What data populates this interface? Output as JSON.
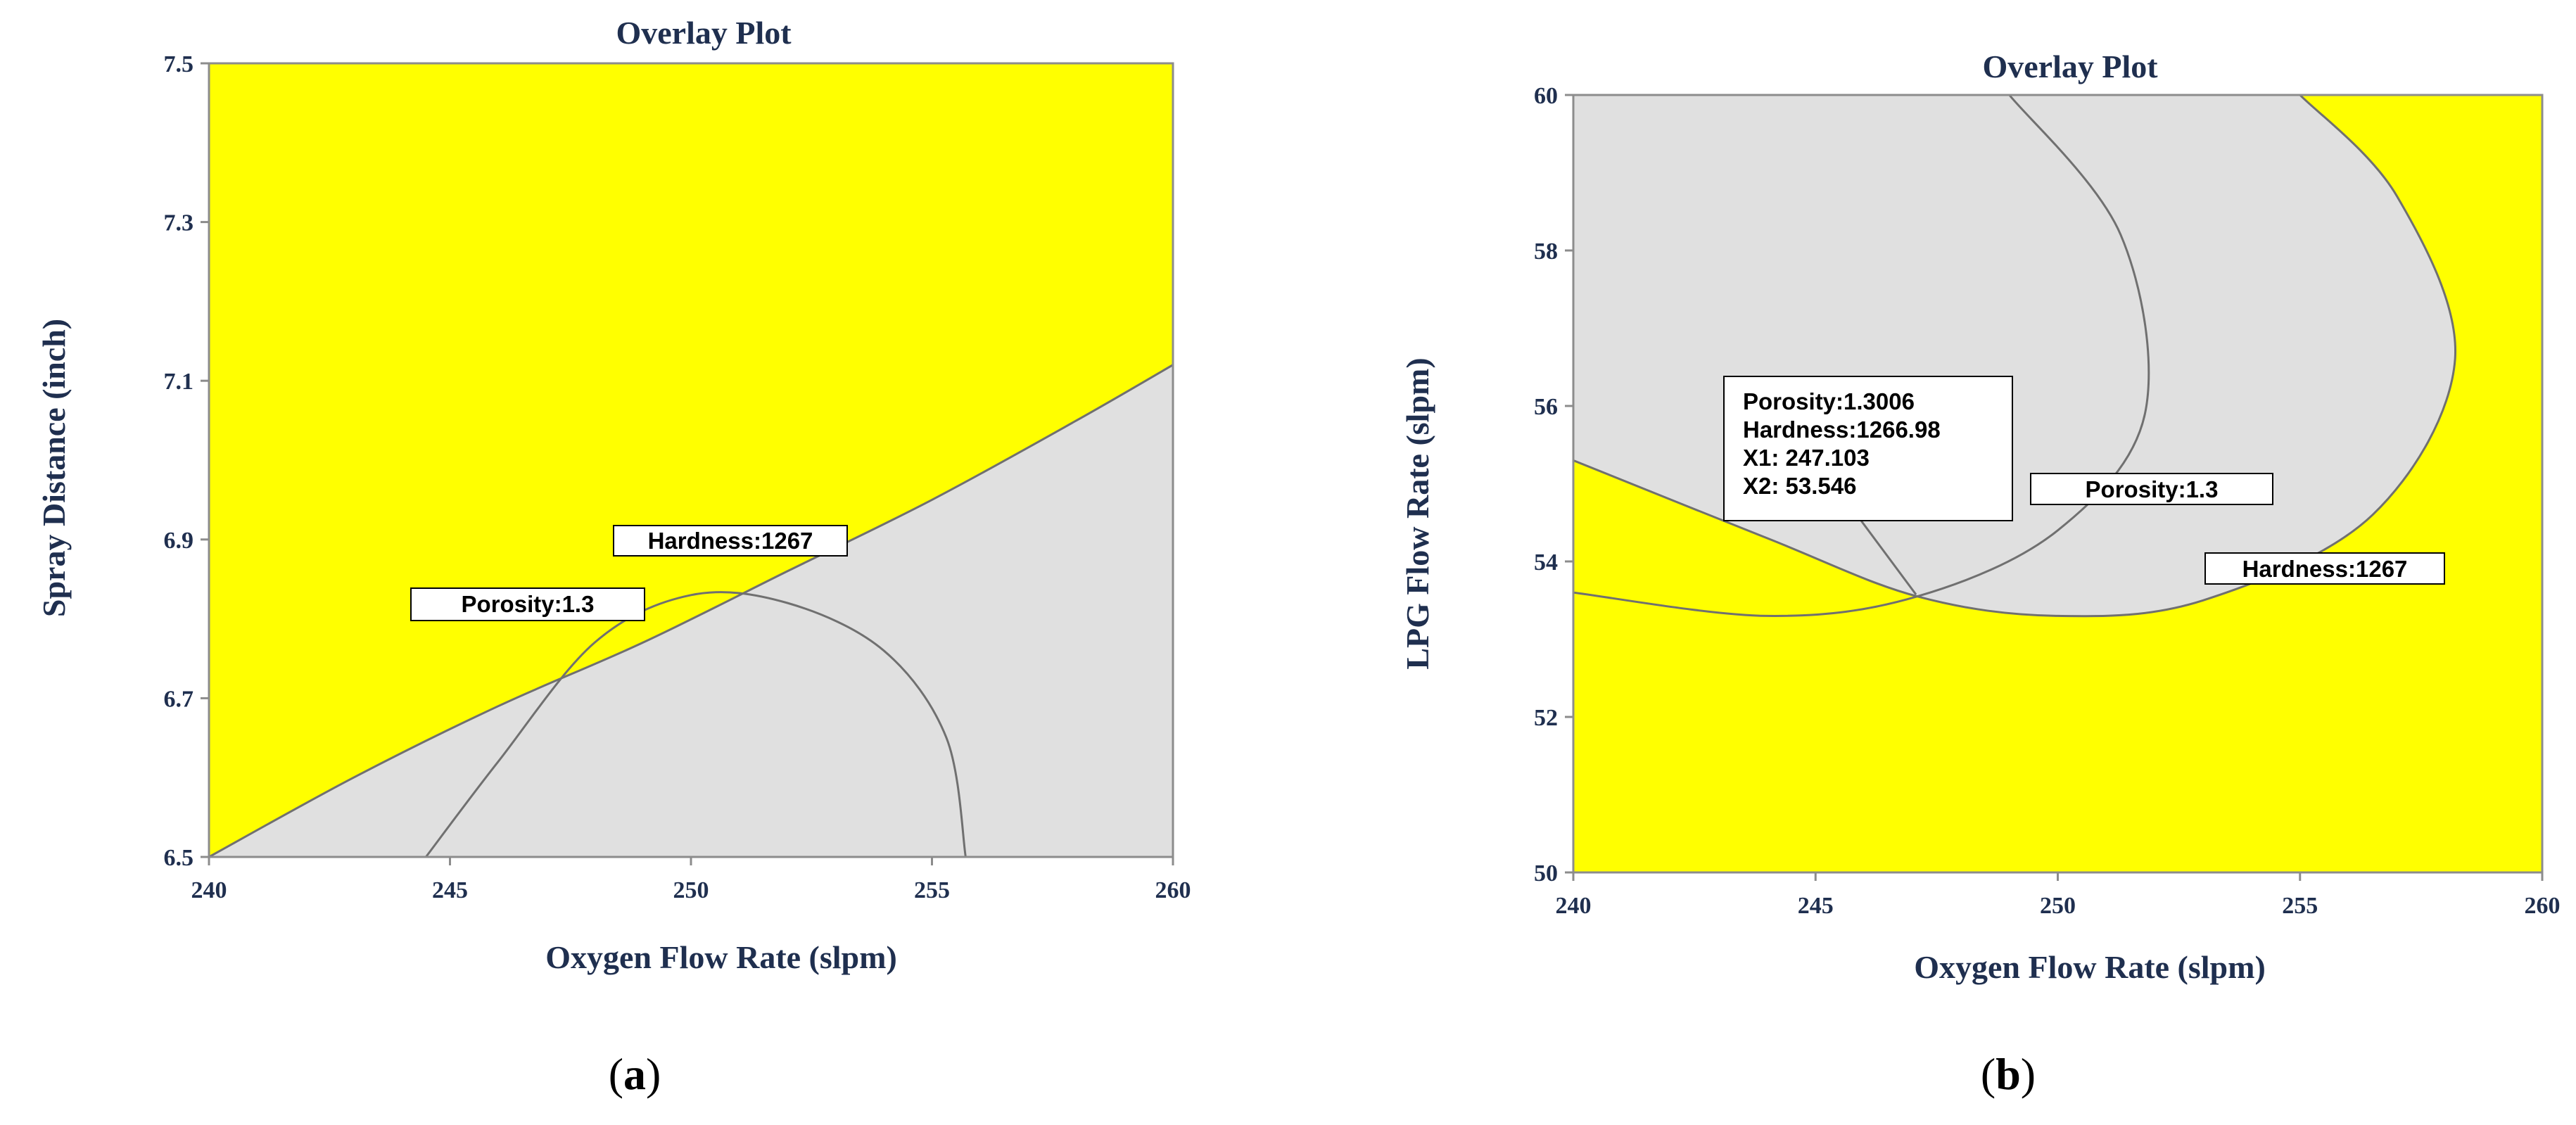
{
  "colors": {
    "feasible": "#ffff00",
    "infeasible": "#e0e0e0",
    "contour": "#707070",
    "frame": "#8c8c8c",
    "text": "#1f2f4f"
  },
  "chart_data": [
    {
      "panel": "a",
      "type": "contour",
      "title": "Overlay Plot",
      "xlabel": "Oxygen Flow Rate (slpm)",
      "ylabel": "Spray Distance (inch)",
      "xlim": [
        240,
        260
      ],
      "ylim": [
        6.5,
        7.5
      ],
      "xticks": [
        "240",
        "245",
        "250",
        "255",
        "260"
      ],
      "yticks": [
        "6.5",
        "6.7",
        "6.9",
        "7.1",
        "7.3",
        "7.5"
      ],
      "grid": false,
      "contours": [
        {
          "response": "Porosity",
          "level": 1.3,
          "label": "Porosity:1.3",
          "points": [
            [
              240,
              6.5
            ],
            [
              243,
              6.6
            ],
            [
              246,
              6.69
            ],
            [
              249,
              6.77
            ],
            [
              252,
              6.86
            ],
            [
              255,
              6.95
            ],
            [
              258,
              7.05
            ],
            [
              260,
              7.12
            ]
          ]
        },
        {
          "response": "Hardness",
          "level": 1267,
          "label": "Hardness:1267",
          "points": [
            [
              244.5,
              6.5
            ],
            [
              246,
              6.62
            ],
            [
              248,
              6.77
            ],
            [
              250,
              6.83
            ],
            [
              252,
              6.82
            ],
            [
              254,
              6.76
            ],
            [
              255.3,
              6.65
            ],
            [
              255.7,
              6.5
            ]
          ]
        }
      ]
    },
    {
      "panel": "b",
      "type": "contour",
      "title": "Overlay Plot",
      "xlabel": "Oxygen Flow Rate (slpm)",
      "ylabel": "LPG Flow Rate (slpm)",
      "xlim": [
        240,
        260
      ],
      "ylim": [
        50,
        60
      ],
      "xticks": [
        "240",
        "245",
        "250",
        "255",
        "260"
      ],
      "yticks": [
        "50",
        "52",
        "54",
        "56",
        "58",
        "60"
      ],
      "grid": false,
      "contours": [
        {
          "response": "Porosity",
          "level": 1.3,
          "label": "Porosity:1.3",
          "points": [
            [
              240,
              53.6
            ],
            [
              244,
              53.3
            ],
            [
              247.1,
              53.55
            ],
            [
              250,
              54.4
            ],
            [
              251.8,
              55.9
            ],
            [
              251.3,
              58.2
            ],
            [
              249,
              60
            ]
          ]
        },
        {
          "response": "Hardness",
          "level": 1267,
          "label": "Hardness:1267",
          "points": [
            [
              240,
              55.3
            ],
            [
              244,
              54.3
            ],
            [
              247.1,
              53.55
            ],
            [
              250,
              53.3
            ],
            [
              253,
              53.5
            ],
            [
              256.5,
              54.6
            ],
            [
              258.2,
              56.6
            ],
            [
              257,
              58.7
            ],
            [
              255,
              60
            ]
          ]
        }
      ],
      "annotation": {
        "x": 247.103,
        "y": 53.546,
        "lines": [
          "Porosity:1.3006",
          "Hardness:1266.98",
          "X1: 247.103",
          "X2: 53.546"
        ]
      }
    }
  ],
  "panel_labels": [
    "(a)",
    "(b)"
  ]
}
